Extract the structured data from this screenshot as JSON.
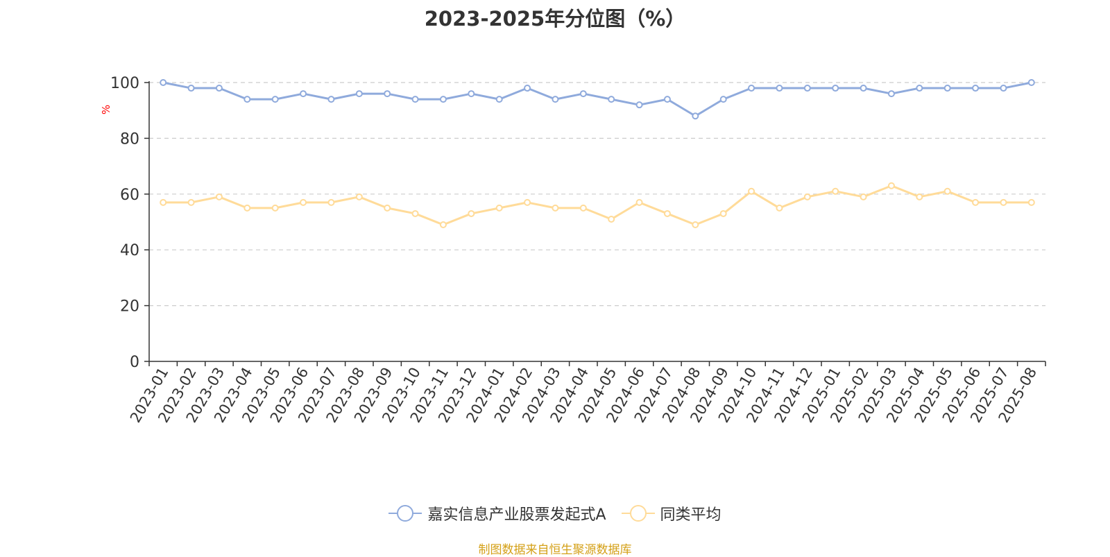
{
  "source": "制图数据来自恒生聚源数据库",
  "colors": {
    "series1": "#8faadc",
    "series2": "#ffdb99",
    "grid": "#cccccc",
    "axis": "#333333",
    "ylabel": "#ff0000"
  },
  "chart_data": {
    "type": "line",
    "title": "2023-2025年分位图（%）",
    "ylabel": "%",
    "ylim": [
      0,
      100
    ],
    "yticks": [
      0,
      20,
      40,
      60,
      80,
      100
    ],
    "grid": true,
    "legend_position": "bottom",
    "categories": [
      "2023-01",
      "2023-02",
      "2023-03",
      "2023-04",
      "2023-05",
      "2023-06",
      "2023-07",
      "2023-08",
      "2023-09",
      "2023-10",
      "2023-11",
      "2023-12",
      "2024-01",
      "2024-02",
      "2024-03",
      "2024-04",
      "2024-05",
      "2024-06",
      "2024-07",
      "2024-08",
      "2024-09",
      "2024-10",
      "2024-11",
      "2024-12",
      "2025-01",
      "2025-02",
      "2025-03",
      "2025-04",
      "2025-05",
      "2025-06",
      "2025-07",
      "2025-08"
    ],
    "series": [
      {
        "name": "嘉实信息产业股票发起式A",
        "values": [
          100,
          98,
          98,
          94,
          94,
          96,
          94,
          96,
          96,
          94,
          94,
          96,
          94,
          98,
          94,
          96,
          94,
          92,
          94,
          88,
          94,
          98,
          98,
          98,
          98,
          98,
          96,
          98,
          98,
          98,
          98,
          100
        ]
      },
      {
        "name": "同类平均",
        "values": [
          57,
          57,
          59,
          55,
          55,
          57,
          57,
          59,
          55,
          53,
          49,
          53,
          55,
          57,
          55,
          55,
          51,
          57,
          53,
          49,
          53,
          61,
          55,
          59,
          61,
          59,
          63,
          59,
          61,
          57,
          57,
          57
        ]
      }
    ]
  }
}
